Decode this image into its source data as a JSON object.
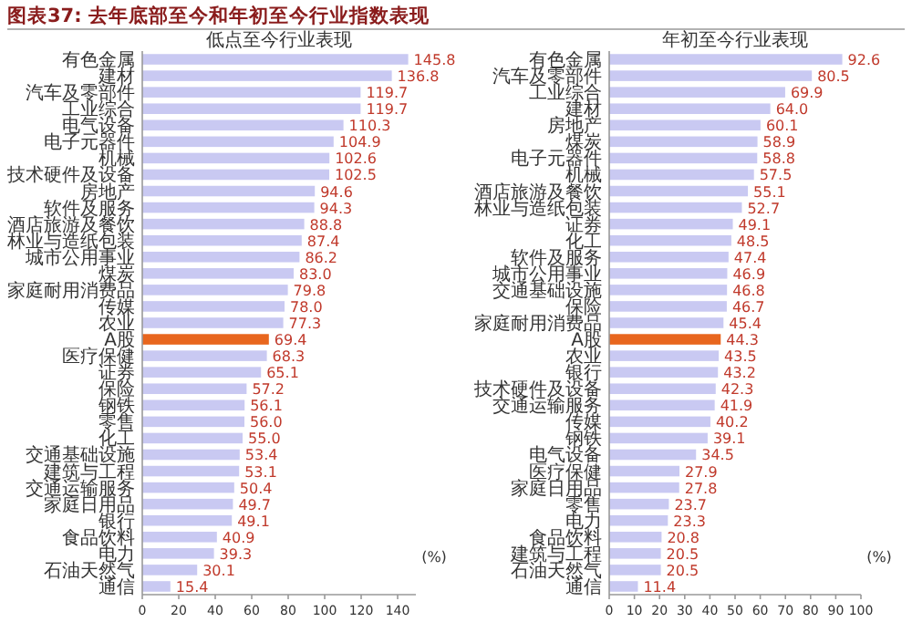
{
  "chart_data": [
    {
      "type": "bar",
      "orientation": "horizontal",
      "title": "低点至今行业表现",
      "annotations": [
        "图表37: 去年底部至今和年初至今行业指数表现",
        "(%)"
      ],
      "categories": [
        "有色金属",
        "建材",
        "汽车及零部件",
        "工业综合",
        "电气设备",
        "电子元器件",
        "机械",
        "技术硬件及设备",
        "房地产",
        "软件及服务",
        "酒店旅游及餐饮",
        "林业与造纸包装",
        "城市公用事业",
        "煤炭",
        "家庭耐用消费品",
        "传媒",
        "农业",
        "A股",
        "医疗保健",
        "证券",
        "保险",
        "钢铁",
        "零售",
        "化工",
        "交通基础设施",
        "建筑与工程",
        "交通运输服务",
        "家庭日用品",
        "银行",
        "食品饮料",
        "电力",
        "石油天然气",
        "通信"
      ],
      "values": [
        145.8,
        136.8,
        119.7,
        119.7,
        110.3,
        104.9,
        102.6,
        102.5,
        94.6,
        94.3,
        88.8,
        87.4,
        86.2,
        83.0,
        79.8,
        78.0,
        77.3,
        69.4,
        68.3,
        65.1,
        57.2,
        56.1,
        56.0,
        55.0,
        53.4,
        53.1,
        50.4,
        49.7,
        49.1,
        40.9,
        39.3,
        30.1,
        15.4
      ],
      "colors": [
        "#c9c9f2",
        "#c9c9f2",
        "#c9c9f2",
        "#c9c9f2",
        "#c9c9f2",
        "#c9c9f2",
        "#c9c9f2",
        "#c9c9f2",
        "#c9c9f2",
        "#c9c9f2",
        "#c9c9f2",
        "#c9c9f2",
        "#c9c9f2",
        "#c9c9f2",
        "#c9c9f2",
        "#c9c9f2",
        "#c9c9f2",
        "#e8661e",
        "#c9c9f2",
        "#c9c9f2",
        "#c9c9f2",
        "#c9c9f2",
        "#c9c9f2",
        "#c9c9f2",
        "#c9c9f2",
        "#c9c9f2",
        "#c9c9f2",
        "#c9c9f2",
        "#c9c9f2",
        "#c9c9f2",
        "#c9c9f2",
        "#c9c9f2",
        "#c9c9f2"
      ],
      "value_labels": [
        "145.8",
        "136.8",
        "119.7",
        "119.7",
        "110.3",
        "104.9",
        "102.6",
        "102.5",
        "94.6",
        "94.3",
        "88.8",
        "87.4",
        "86.2",
        "83.0",
        "79.8",
        "78.0",
        "77.3",
        "69.4",
        "68.3",
        "65.1",
        "57.2",
        "56.1",
        "56.0",
        "55.0",
        "53.4",
        "53.1",
        "50.4",
        "49.7",
        "49.1",
        "40.9",
        "39.3",
        "30.1",
        "15.4"
      ],
      "xlim": [
        0,
        150
      ],
      "xticks": [
        0,
        20,
        40,
        60,
        80,
        100,
        120,
        140
      ]
    },
    {
      "type": "bar",
      "orientation": "horizontal",
      "title": "年初至今行业表现",
      "annotations": [
        "(%)"
      ],
      "categories": [
        "有色金属",
        "汽车及零部件",
        "工业综合",
        "建材",
        "房地产",
        "煤炭",
        "电子元器件",
        "机械",
        "酒店旅游及餐饮",
        "林业与造纸包装",
        "证券",
        "化工",
        "软件及服务",
        "城市公用事业",
        "交通基础设施",
        "保险",
        "家庭耐用消费品",
        "A股",
        "农业",
        "银行",
        "技术硬件及设备",
        "交通运输服务",
        "传媒",
        "钢铁",
        "电气设备",
        "医疗保健",
        "家庭日用品",
        "零售",
        "电力",
        "食品饮料",
        "建筑与工程",
        "石油天然气",
        "通信"
      ],
      "values": [
        92.6,
        80.5,
        69.9,
        64.0,
        60.1,
        58.9,
        58.8,
        57.5,
        55.1,
        52.7,
        49.1,
        48.5,
        47.4,
        46.9,
        46.8,
        46.7,
        45.4,
        44.3,
        43.5,
        43.2,
        42.3,
        41.9,
        40.2,
        39.1,
        34.5,
        27.9,
        27.8,
        23.7,
        23.3,
        20.8,
        20.5,
        20.5,
        11.4
      ],
      "colors": [
        "#c9c9f2",
        "#c9c9f2",
        "#c9c9f2",
        "#c9c9f2",
        "#c9c9f2",
        "#c9c9f2",
        "#c9c9f2",
        "#c9c9f2",
        "#c9c9f2",
        "#c9c9f2",
        "#c9c9f2",
        "#c9c9f2",
        "#c9c9f2",
        "#c9c9f2",
        "#c9c9f2",
        "#c9c9f2",
        "#c9c9f2",
        "#e8661e",
        "#c9c9f2",
        "#c9c9f2",
        "#c9c9f2",
        "#c9c9f2",
        "#c9c9f2",
        "#c9c9f2",
        "#c9c9f2",
        "#c9c9f2",
        "#c9c9f2",
        "#c9c9f2",
        "#c9c9f2",
        "#c9c9f2",
        "#c9c9f2",
        "#c9c9f2",
        "#c9c9f2"
      ],
      "value_labels": [
        "92.6",
        "80.5",
        "69.9",
        "64.0",
        "60.1",
        "58.9",
        "58.8",
        "57.5",
        "55.1",
        "52.7",
        "49.1",
        "48.5",
        "47.4",
        "46.9",
        "46.8",
        "46.7",
        "45.4",
        "44.3",
        "43.5",
        "43.2",
        "42.3",
        "41.9",
        "40.2",
        "39.1",
        "34.5",
        "27.9",
        "27.8",
        "23.7",
        "23.3",
        "20.8",
        "20.5",
        "20.5",
        "11.4"
      ],
      "xlim": [
        0,
        100
      ],
      "xticks": [
        0,
        10,
        20,
        30,
        40,
        50,
        60,
        70,
        80,
        90,
        100
      ]
    }
  ]
}
